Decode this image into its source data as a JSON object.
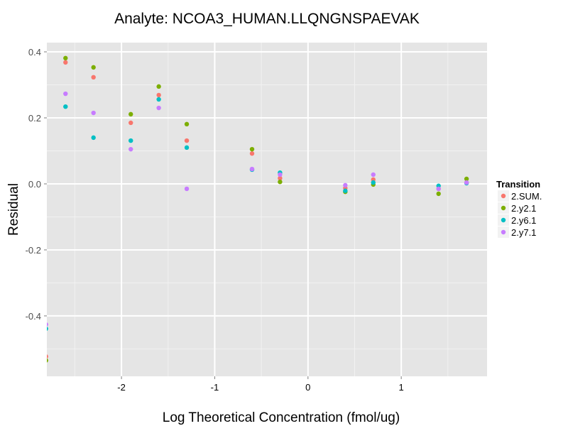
{
  "chart_data": {
    "type": "scatter",
    "title": "Analyte: NCOA3_HUMAN.LLQNGNSPAEVAK",
    "xlabel": "Log Theoretical Concentration (fmol/ug)",
    "ylabel": "Residual",
    "xlim": [
      -2.8,
      1.92
    ],
    "ylim": [
      -0.583,
      0.428
    ],
    "x_ticks": [
      -2,
      -1,
      0,
      1
    ],
    "x_tick_labels": [
      "-2",
      "-1",
      "0",
      "1"
    ],
    "y_ticks": [
      0.4,
      0.2,
      0.0,
      -0.2,
      -0.4
    ],
    "y_tick_labels": [
      "0.4",
      "0.2",
      "0.0",
      "-0.2",
      "-0.4"
    ],
    "grid": true,
    "legend": {
      "title": "Transition",
      "position": "right"
    },
    "x": [
      -2.81,
      -2.6,
      -2.3,
      -1.9,
      -1.6,
      -1.3,
      -0.6,
      -0.3,
      0.4,
      0.7,
      1.4,
      1.7
    ],
    "series": [
      {
        "name": "2.SUM.",
        "color": "#F8766D",
        "values": [
          -0.523,
          0.368,
          0.323,
          0.185,
          0.269,
          0.131,
          0.092,
          0.017,
          -0.013,
          0.013,
          -0.015,
          0.004
        ]
      },
      {
        "name": "2.y2.1",
        "color": "#7CAE00",
        "values": [
          -0.535,
          0.381,
          0.353,
          0.211,
          0.295,
          0.181,
          0.105,
          0.006,
          -0.024,
          -0.002,
          -0.03,
          0.015
        ]
      },
      {
        "name": "2.y6.1",
        "color": "#00BFC4",
        "values": [
          -0.439,
          0.234,
          0.14,
          0.131,
          0.256,
          0.11,
          0.043,
          0.034,
          -0.021,
          0.004,
          -0.006,
          0.002
        ]
      },
      {
        "name": "2.y7.1",
        "color": "#C77CFF",
        "values": [
          -0.426,
          0.273,
          0.215,
          0.105,
          0.23,
          -0.015,
          0.045,
          0.028,
          -0.004,
          0.028,
          -0.015,
          0.004
        ]
      }
    ],
    "colors": {
      "panel": "#E5E5E5",
      "grid_major": "#FFFFFF",
      "grid_minor": "#F2F2F2",
      "tick_label": "#4D4D4D",
      "legend_key_bg": "#F2F2F2"
    }
  }
}
